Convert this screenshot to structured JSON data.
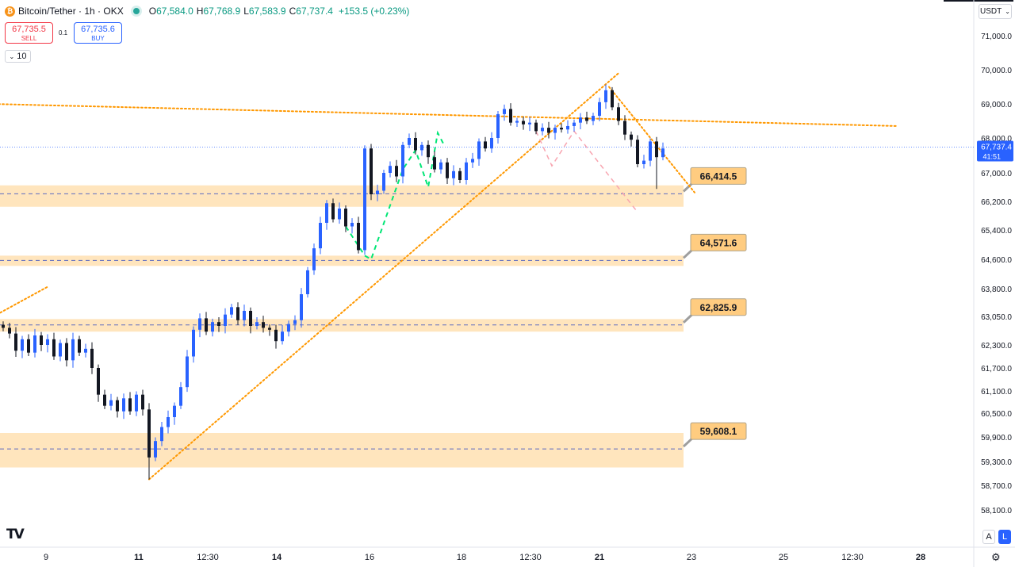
{
  "header": {
    "symbol_title": "Bitcoin/Tether · 1h · OKX",
    "coin_icon": "bitcoin-icon",
    "market_status_color": "#26a69a",
    "ohlc": [
      {
        "label": "O",
        "value": "67,584.0"
      },
      {
        "label": "H",
        "value": "67,768.9"
      },
      {
        "label": "L",
        "value": "67,583.9"
      },
      {
        "label": "C",
        "value": "67,737.4"
      }
    ],
    "change": "+153.5 (+0.23%)"
  },
  "trade": {
    "sell_price": "67,735.5",
    "sell_label": "SELL",
    "spread": "0.1",
    "buy_price": "67,735.6",
    "buy_label": "BUY"
  },
  "indicator_toggle": "10",
  "currency_selector": "USDT",
  "scale_buttons": {
    "auto": "A",
    "log": "L"
  },
  "logo": "TV",
  "chart_data": {
    "type": "candlestick",
    "title": "Bitcoin/Tether · 1h · OKX",
    "y_ticks": [
      71000,
      70000,
      69000,
      68000,
      67000,
      66200,
      65400,
      64600,
      63800,
      63050,
      62300,
      61700,
      61100,
      60500,
      59900,
      59300,
      58700,
      58100
    ],
    "y_tick_labels": [
      "71,000.0",
      "70,000.0",
      "69,000.0",
      "68,000.0",
      "67,000.0",
      "66,200.0",
      "65,400.0",
      "64,600.0",
      "63,800.0",
      "63,050.0",
      "62,300.0",
      "61,700.0",
      "61,100.0",
      "60,500.0",
      "59,900.0",
      "59,300.0",
      "58,700.0",
      "58,100.0"
    ],
    "x_ticks": [
      "9",
      "11",
      "12:30",
      "14",
      "16",
      "18",
      "12:30",
      "21",
      "23",
      "25",
      "12:30",
      "28"
    ],
    "bold_x_ticks": [
      "11",
      "14",
      "21",
      "28"
    ],
    "current_price": {
      "value": "67,737.4",
      "countdown": "41:51",
      "y": 67737.4
    },
    "up_color": "#2962ff",
    "down_color": "#131722",
    "support_zones": [
      {
        "label": "66,414.5",
        "level": 66414.5,
        "y_top": 66650,
        "y_bottom": 66050
      },
      {
        "label": "64,571.6",
        "level": 64571.6,
        "y_top": 64700,
        "y_bottom": 64420
      },
      {
        "label": "62,825.9",
        "level": 62825.9,
        "y_top": 62980,
        "y_bottom": 62650
      },
      {
        "label": "59,608.1",
        "level": 59608.1,
        "y_top": 60000,
        "y_bottom": 59150
      }
    ],
    "zone_color": "#ffe0b2",
    "label_color": "#ffcc80",
    "trendline_color": "#ff9800",
    "path_up_color": "#00e676",
    "path_down_color": "#f8a5b0",
    "series": [
      {
        "t": 0,
        "close": 62750
      },
      {
        "t": 2,
        "close": 62600
      },
      {
        "t": 4,
        "close": 62150
      },
      {
        "t": 6,
        "close": 62450
      },
      {
        "t": 8,
        "close": 62100
      },
      {
        "t": 10,
        "close": 62550
      },
      {
        "t": 12,
        "close": 62300
      },
      {
        "t": 14,
        "close": 62450
      },
      {
        "t": 16,
        "close": 62000
      },
      {
        "t": 18,
        "close": 62350
      },
      {
        "t": 20,
        "close": 61900
      },
      {
        "t": 22,
        "close": 62450
      },
      {
        "t": 24,
        "close": 62100
      },
      {
        "t": 26,
        "close": 62200
      },
      {
        "t": 28,
        "close": 61700
      },
      {
        "t": 30,
        "close": 61000
      },
      {
        "t": 32,
        "close": 60700
      },
      {
        "t": 34,
        "close": 60850
      },
      {
        "t": 36,
        "close": 60550
      },
      {
        "t": 38,
        "close": 60900
      },
      {
        "t": 40,
        "close": 60550
      },
      {
        "t": 42,
        "close": 61000
      },
      {
        "t": 44,
        "close": 60600
      },
      {
        "t": 46,
        "close": 59400
      },
      {
        "t": 48,
        "close": 59800
      },
      {
        "t": 50,
        "close": 60150
      },
      {
        "t": 52,
        "close": 60400
      },
      {
        "t": 54,
        "close": 60700
      },
      {
        "t": 56,
        "close": 61200
      },
      {
        "t": 58,
        "close": 62000
      },
      {
        "t": 60,
        "close": 62700
      },
      {
        "t": 62,
        "close": 63000
      },
      {
        "t": 64,
        "close": 62650
      },
      {
        "t": 66,
        "close": 62900
      },
      {
        "t": 68,
        "close": 62800
      },
      {
        "t": 70,
        "close": 63100
      },
      {
        "t": 72,
        "close": 63300
      },
      {
        "t": 74,
        "close": 62950
      },
      {
        "t": 76,
        "close": 63200
      },
      {
        "t": 78,
        "close": 62800
      },
      {
        "t": 80,
        "close": 62900
      },
      {
        "t": 82,
        "close": 62750
      },
      {
        "t": 84,
        "close": 62700
      },
      {
        "t": 86,
        "close": 62400
      },
      {
        "t": 88,
        "close": 62650
      },
      {
        "t": 90,
        "close": 62850
      },
      {
        "t": 92,
        "close": 62950
      },
      {
        "t": 94,
        "close": 63650
      },
      {
        "t": 96,
        "close": 64300
      },
      {
        "t": 98,
        "close": 64900
      },
      {
        "t": 100,
        "close": 65600
      },
      {
        "t": 102,
        "close": 66150
      },
      {
        "t": 104,
        "close": 65700
      },
      {
        "t": 106,
        "close": 66000
      },
      {
        "t": 108,
        "close": 65500
      },
      {
        "t": 110,
        "close": 65600
      },
      {
        "t": 112,
        "close": 64850
      },
      {
        "t": 114,
        "close": 67700
      },
      {
        "t": 116,
        "close": 66400
      },
      {
        "t": 118,
        "close": 66500
      },
      {
        "t": 120,
        "close": 67000
      },
      {
        "t": 122,
        "close": 67200
      },
      {
        "t": 124,
        "close": 66900
      },
      {
        "t": 126,
        "close": 67800
      },
      {
        "t": 128,
        "close": 68000
      },
      {
        "t": 130,
        "close": 67650
      },
      {
        "t": 132,
        "close": 67800
      },
      {
        "t": 134,
        "close": 67450
      },
      {
        "t": 136,
        "close": 67100
      },
      {
        "t": 138,
        "close": 67300
      },
      {
        "t": 140,
        "close": 66850
      },
      {
        "t": 142,
        "close": 67050
      },
      {
        "t": 144,
        "close": 66800
      },
      {
        "t": 146,
        "close": 67300
      },
      {
        "t": 148,
        "close": 67400
      },
      {
        "t": 150,
        "close": 67900
      },
      {
        "t": 152,
        "close": 67700
      },
      {
        "t": 154,
        "close": 68000
      },
      {
        "t": 156,
        "close": 68700
      },
      {
        "t": 158,
        "close": 68850
      },
      {
        "t": 160,
        "close": 68450
      },
      {
        "t": 162,
        "close": 68500
      },
      {
        "t": 164,
        "close": 68400
      },
      {
        "t": 166,
        "close": 68450
      },
      {
        "t": 168,
        "close": 68200
      },
      {
        "t": 170,
        "close": 68300
      },
      {
        "t": 172,
        "close": 68150
      },
      {
        "t": 174,
        "close": 68300
      },
      {
        "t": 176,
        "close": 68250
      },
      {
        "t": 178,
        "close": 68350
      },
      {
        "t": 180,
        "close": 68450
      },
      {
        "t": 182,
        "close": 68600
      },
      {
        "t": 184,
        "close": 68500
      },
      {
        "t": 186,
        "close": 68650
      },
      {
        "t": 188,
        "close": 69050
      },
      {
        "t": 190,
        "close": 69400
      },
      {
        "t": 192,
        "close": 68900
      },
      {
        "t": 194,
        "close": 68500
      },
      {
        "t": 196,
        "close": 68100
      },
      {
        "t": 198,
        "close": 67950
      },
      {
        "t": 200,
        "close": 67250
      },
      {
        "t": 202,
        "close": 67350
      },
      {
        "t": 204,
        "close": 67900
      },
      {
        "t": 206,
        "close": 67450
      },
      {
        "t": 208,
        "close": 67700
      }
    ],
    "highlighted_lows": [
      {
        "t": 46,
        "value": 58850
      },
      {
        "t": 206,
        "value": 66550
      }
    ],
    "trendlines": [
      {
        "from": {
          "t": -4,
          "value": 69000
        },
        "to": {
          "t": 282,
          "value": 68350
        },
        "style": "dotted"
      },
      {
        "from": {
          "t": 46,
          "value": 58850
        },
        "to": {
          "t": 194,
          "value": 69900
        },
        "style": "dotted"
      },
      {
        "from": {
          "t": -2,
          "value": 63100
        },
        "to": {
          "t": 14,
          "value": 63850
        },
        "style": "dotted"
      },
      {
        "from": {
          "t": 191,
          "value": 69500
        },
        "to": {
          "t": 218,
          "value": 66450
        },
        "style": "dotted"
      }
    ],
    "projection_paths": [
      {
        "color": "up",
        "points": [
          {
            "t": 108,
            "value": 65500
          },
          {
            "t": 114,
            "value": 64700
          },
          {
            "t": 116,
            "value": 64600
          },
          {
            "t": 126,
            "value": 67100
          },
          {
            "t": 130,
            "value": 67650
          },
          {
            "t": 134,
            "value": 66600
          },
          {
            "t": 137,
            "value": 68150
          },
          {
            "t": 139,
            "value": 67800
          }
        ]
      },
      {
        "color": "down",
        "points": [
          {
            "t": 168,
            "value": 68200
          },
          {
            "t": 173,
            "value": 67200
          },
          {
            "t": 180,
            "value": 68200
          },
          {
            "t": 200,
            "value": 65900
          }
        ]
      }
    ]
  }
}
